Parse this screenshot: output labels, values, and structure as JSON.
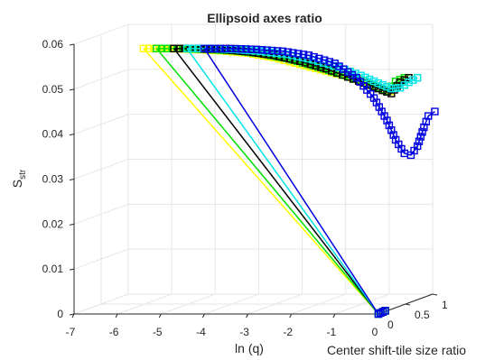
{
  "chart_data": {
    "type": "line",
    "title": "Ellipsoid axes ratio",
    "xlabel": "ln (q)",
    "ylabel": "Center shift-tile size ratio",
    "zlabel_main": "S",
    "zlabel_sub": "str",
    "x_ticks": [
      "-7",
      "-6",
      "-5",
      "-4",
      "-3",
      "-2",
      "-1",
      "0"
    ],
    "y_ticks": [
      "0",
      "0.5",
      "1"
    ],
    "z_ticks": [
      "0",
      "0.01",
      "0.02",
      "0.03",
      "0.04",
      "0.05",
      "0.06"
    ],
    "xlim": [
      -7,
      0
    ],
    "ylim": [
      0,
      1
    ],
    "zlim": [
      0,
      0.06
    ],
    "grid": true,
    "marker": "square",
    "series": [
      {
        "color": "#ffff00",
        "ln_q_start": -6.4,
        "s_str_start": 0.0555,
        "curve": [
          [
            -6.4,
            0.0555
          ],
          [
            -5.8,
            0.0555
          ],
          [
            -5.2,
            0.0553
          ],
          [
            -4.6,
            0.055
          ],
          [
            -4.0,
            0.0545
          ],
          [
            -3.4,
            0.0535
          ],
          [
            -2.8,
            0.052
          ],
          [
            -2.2,
            0.0505
          ],
          [
            -1.6,
            0.049
          ],
          [
            -1.2,
            0.0478
          ],
          [
            -0.9,
            0.0465
          ],
          [
            -0.7,
            0.046
          ],
          [
            -0.5,
            0.0482
          ],
          [
            -0.3,
            0.049
          ]
        ],
        "end": [
          0,
          0
        ]
      },
      {
        "color": "#00e000",
        "ln_q_start": -6.1,
        "s_str_start": 0.0555,
        "curve": [
          [
            -6.1,
            0.0555
          ],
          [
            -5.5,
            0.0555
          ],
          [
            -4.9,
            0.0553
          ],
          [
            -4.3,
            0.055
          ],
          [
            -3.7,
            0.0544
          ],
          [
            -3.1,
            0.0533
          ],
          [
            -2.5,
            0.0517
          ],
          [
            -1.9,
            0.05
          ],
          [
            -1.4,
            0.0483
          ],
          [
            -1.0,
            0.0468
          ],
          [
            -0.8,
            0.046
          ],
          [
            -0.6,
            0.0482
          ],
          [
            -0.4,
            0.049
          ]
        ],
        "end": [
          0,
          0
        ]
      },
      {
        "color": "#000000",
        "ln_q_start": -5.7,
        "s_str_start": 0.0555,
        "curve": [
          [
            -5.7,
            0.0555
          ],
          [
            -5.2,
            0.0555
          ],
          [
            -4.6,
            0.0553
          ],
          [
            -4.0,
            0.0548
          ],
          [
            -3.4,
            0.054
          ],
          [
            -2.8,
            0.0527
          ],
          [
            -2.2,
            0.051
          ],
          [
            -1.7,
            0.0492
          ],
          [
            -1.2,
            0.0474
          ],
          [
            -0.9,
            0.0462
          ],
          [
            -0.7,
            0.0455
          ],
          [
            -0.5,
            0.048
          ],
          [
            -0.3,
            0.049
          ]
        ],
        "end": [
          0,
          0
        ]
      },
      {
        "color": "#00e5e5",
        "ln_q_start": -5.4,
        "s_str_start": 0.0555,
        "curve": [
          [
            -5.4,
            0.0555
          ],
          [
            -4.9,
            0.0555
          ],
          [
            -4.3,
            0.0553
          ],
          [
            -3.7,
            0.0549
          ],
          [
            -3.1,
            0.0542
          ],
          [
            -2.5,
            0.053
          ],
          [
            -1.9,
            0.0513
          ],
          [
            -1.4,
            0.0495
          ],
          [
            -1.0,
            0.0478
          ],
          [
            -0.7,
            0.0466
          ],
          [
            -0.5,
            0.0468
          ],
          [
            -0.3,
            0.048
          ],
          [
            -0.1,
            0.049
          ]
        ],
        "end": [
          0,
          0
        ]
      },
      {
        "color": "#0000e0",
        "ln_q_start": -5.0,
        "s_str_start": 0.0555,
        "curve": [
          [
            -5.0,
            0.0555
          ],
          [
            -4.4,
            0.0555
          ],
          [
            -3.8,
            0.0553
          ],
          [
            -3.2,
            0.0549
          ],
          [
            -2.6,
            0.054
          ],
          [
            -2.0,
            0.0522
          ],
          [
            -1.5,
            0.049
          ],
          [
            -1.1,
            0.0445
          ],
          [
            -0.8,
            0.0395
          ],
          [
            -0.6,
            0.0352
          ],
          [
            -0.4,
            0.0322
          ],
          [
            -0.25,
            0.0318
          ],
          [
            -0.1,
            0.0338
          ],
          [
            0.05,
            0.038
          ],
          [
            0.15,
            0.0405
          ],
          [
            0.3,
            0.0415
          ]
        ],
        "end": [
          0,
          0
        ]
      }
    ]
  }
}
